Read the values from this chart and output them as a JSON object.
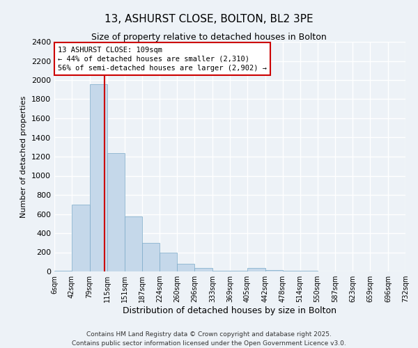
{
  "title": "13, ASHURST CLOSE, BOLTON, BL2 3PE",
  "subtitle": "Size of property relative to detached houses in Bolton",
  "xlabel": "Distribution of detached houses by size in Bolton",
  "ylabel": "Number of detached properties",
  "bar_color": "#c5d8ea",
  "bar_edge_color": "#7aaac8",
  "background_color": "#edf2f7",
  "grid_color": "#ffffff",
  "bin_edges": [
    6,
    42,
    79,
    115,
    151,
    187,
    224,
    260,
    296,
    333,
    369,
    405,
    442,
    478,
    514,
    550,
    587,
    623,
    659,
    696,
    732
  ],
  "bin_labels": [
    "6sqm",
    "42sqm",
    "79sqm",
    "115sqm",
    "151sqm",
    "187sqm",
    "224sqm",
    "260sqm",
    "296sqm",
    "333sqm",
    "369sqm",
    "405sqm",
    "442sqm",
    "478sqm",
    "514sqm",
    "550sqm",
    "587sqm",
    "623sqm",
    "659sqm",
    "696sqm",
    "732sqm"
  ],
  "bar_heights": [
    10,
    700,
    1960,
    1240,
    575,
    300,
    200,
    80,
    40,
    10,
    5,
    35,
    15,
    5,
    5,
    0,
    0,
    0,
    0,
    0
  ],
  "ylim": [
    0,
    2400
  ],
  "yticks": [
    0,
    200,
    400,
    600,
    800,
    1000,
    1200,
    1400,
    1600,
    1800,
    2000,
    2200,
    2400
  ],
  "vline_x": 109,
  "vline_color": "#cc0000",
  "annotation_title": "13 ASHURST CLOSE: 109sqm",
  "annotation_line1": "← 44% of detached houses are smaller (2,310)",
  "annotation_line2": "56% of semi-detached houses are larger (2,902) →",
  "annotation_box_color": "#ffffff",
  "annotation_box_edge": "#cc0000",
  "footer1": "Contains HM Land Registry data © Crown copyright and database right 2025.",
  "footer2": "Contains public sector information licensed under the Open Government Licence v3.0."
}
